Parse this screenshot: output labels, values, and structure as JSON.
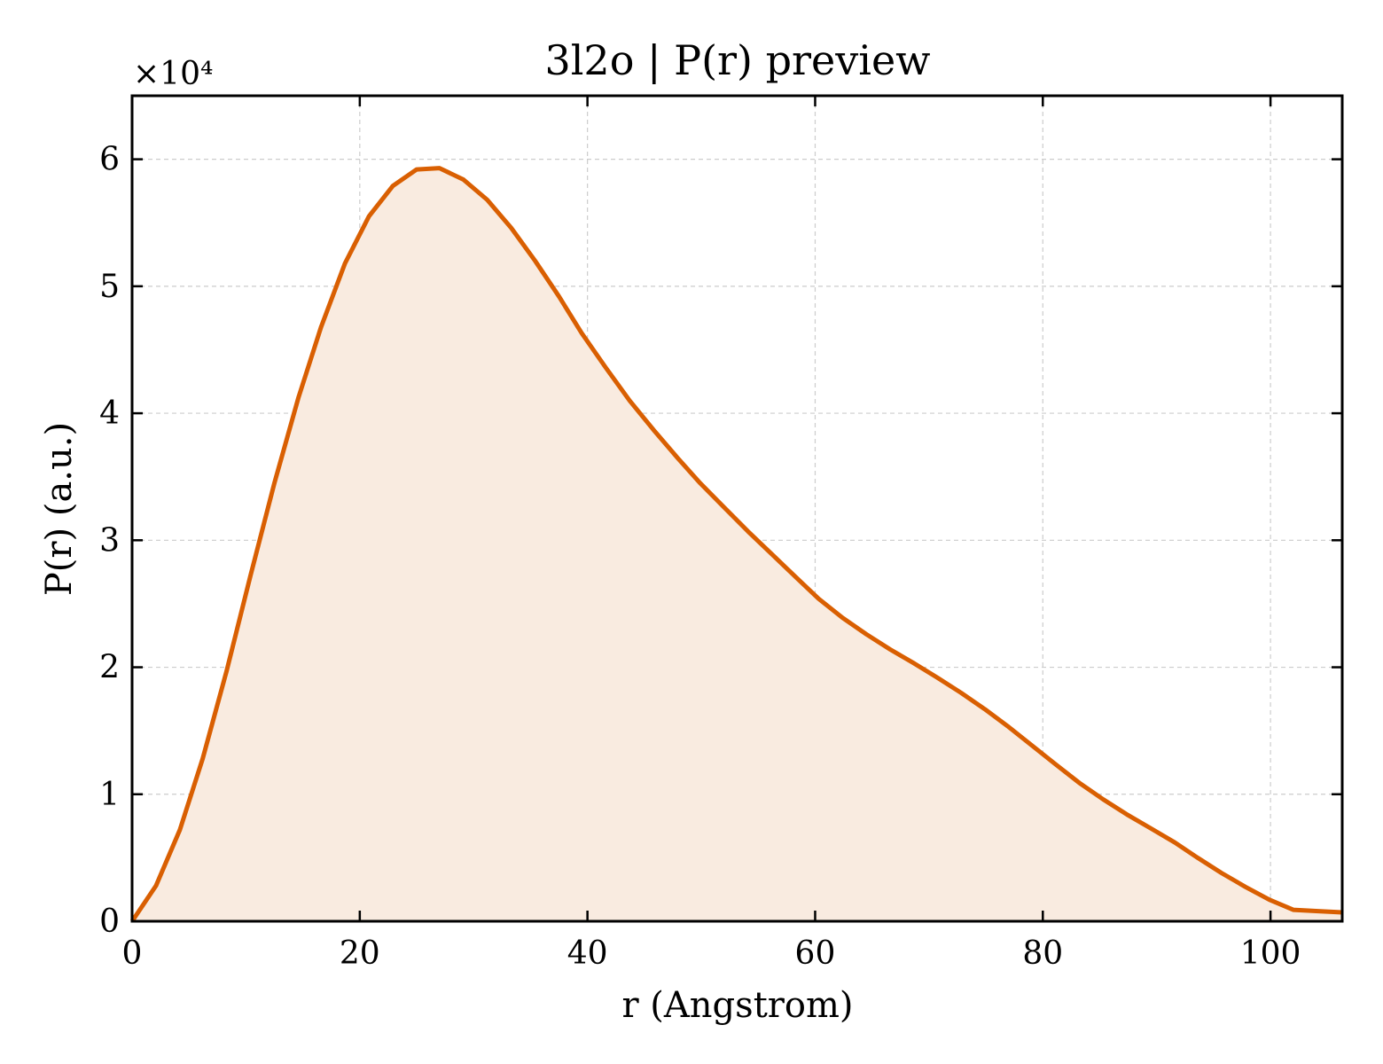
{
  "chart_data": {
    "type": "area",
    "title": "3l2o | P(r) preview",
    "xlabel": "r (Angstrom)",
    "ylabel": "P(r) (a.u.)",
    "y_multiplier": "×10⁴",
    "xlim": [
      0,
      106.3
    ],
    "ylim": [
      0,
      6.5
    ],
    "x_ticks": [
      0,
      20,
      40,
      60,
      80,
      100
    ],
    "y_ticks": [
      0,
      1,
      2,
      3,
      4,
      5,
      6
    ],
    "grid": true,
    "line_color": "#d95f02",
    "fill_color": "#f9ebe0",
    "series": [
      {
        "x": [
          0,
          2.1,
          4.2,
          6.2,
          8.3,
          10.4,
          12.5,
          14.6,
          16.6,
          18.7,
          20.8,
          22.9,
          25.0,
          27.0,
          29.1,
          31.2,
          33.3,
          35.4,
          37.5,
          39.5,
          41.6,
          43.7,
          45.8,
          47.9,
          49.9,
          52.0,
          54.1,
          56.2,
          58.3,
          60.3,
          62.4,
          64.5,
          66.6,
          68.7,
          70.7,
          72.8,
          74.9,
          77.0,
          79.1,
          81.2,
          83.2,
          85.3,
          87.4,
          89.5,
          91.6,
          93.6,
          95.7,
          97.8,
          99.9,
          102.0,
          104.0,
          106.3
        ],
        "y": [
          0,
          0.28,
          0.72,
          1.28,
          1.97,
          2.72,
          3.45,
          4.12,
          4.68,
          5.18,
          5.55,
          5.79,
          5.92,
          5.93,
          5.84,
          5.68,
          5.46,
          5.2,
          4.92,
          4.63,
          4.36,
          4.1,
          3.87,
          3.65,
          3.45,
          3.26,
          3.07,
          2.89,
          2.71,
          2.54,
          2.39,
          2.26,
          2.14,
          2.03,
          1.92,
          1.8,
          1.67,
          1.53,
          1.38,
          1.23,
          1.09,
          0.96,
          0.84,
          0.73,
          0.62,
          0.5,
          0.38,
          0.27,
          0.17,
          0.09,
          0.08,
          0.07
        ]
      }
    ]
  }
}
